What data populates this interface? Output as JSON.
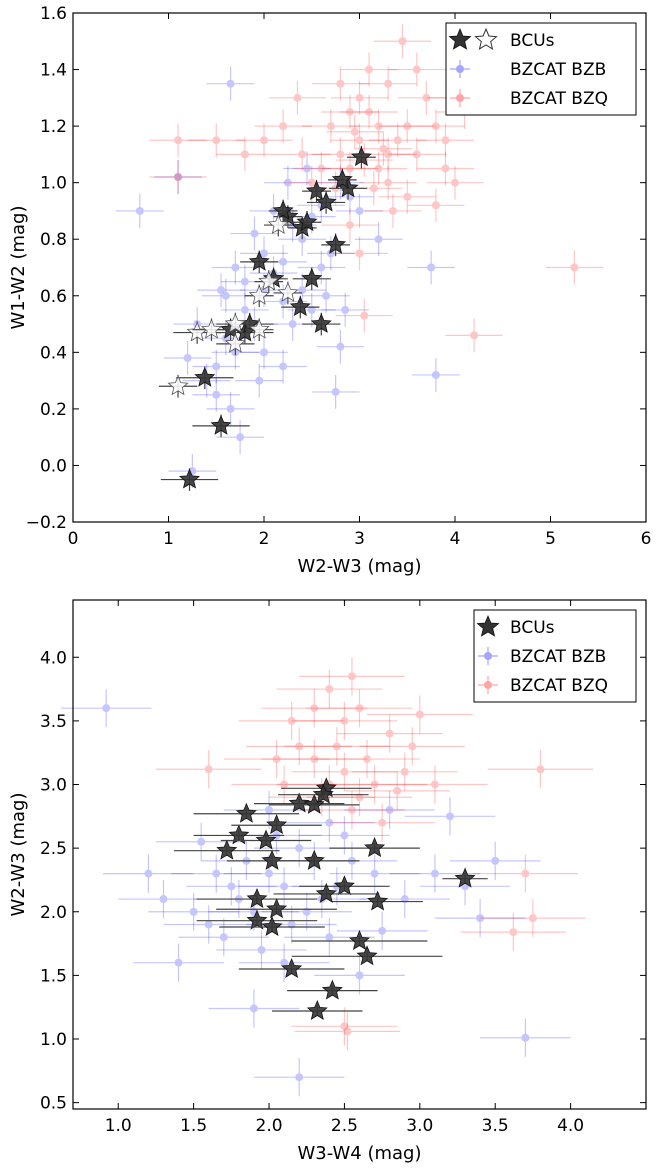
{
  "colors": {
    "bzb": "#0000ff",
    "bzq": "#ff0000",
    "bcu": "#333333",
    "bcu_open": "#ffffff"
  },
  "chart_data": [
    {
      "type": "scatter",
      "xlabel": "W2-W3 (mag)",
      "ylabel": "W1-W2 (mag)",
      "xlim": [
        0,
        6
      ],
      "ylim": [
        -0.2,
        1.6
      ],
      "xticks": [
        "0",
        "1",
        "2",
        "3",
        "4",
        "5",
        "6"
      ],
      "yticks": [
        "−0.2",
        "0.0",
        "0.2",
        "0.4",
        "0.6",
        "0.8",
        "1.0",
        "1.2",
        "1.4",
        "1.6"
      ],
      "grid": false,
      "legend_position": "top-right",
      "legend": [
        "BCUs",
        "BZCAT BZB",
        "BZCAT BZQ"
      ],
      "series": [
        {
          "name": "BZCAT BZB",
          "points": [
            [
              1.8,
              0.55
            ],
            [
              2.0,
              0.62
            ],
            [
              2.2,
              0.72
            ],
            [
              1.6,
              0.45
            ],
            [
              2.4,
              0.8
            ],
            [
              2.6,
              0.92
            ],
            [
              1.9,
              0.5
            ],
            [
              2.1,
              0.68
            ],
            [
              2.3,
              0.85
            ],
            [
              1.7,
              0.4
            ],
            [
              1.5,
              0.35
            ],
            [
              2.5,
              0.88
            ],
            [
              2.8,
              1.0
            ],
            [
              1.4,
              0.3
            ],
            [
              1.2,
              0.38
            ],
            [
              2.0,
              0.75
            ],
            [
              1.8,
              0.65
            ],
            [
              2.2,
              0.58
            ],
            [
              2.6,
              0.7
            ],
            [
              1.6,
              0.6
            ],
            [
              2.4,
              0.62
            ],
            [
              2.7,
              0.75
            ],
            [
              2.9,
              0.95
            ],
            [
              1.3,
              0.5
            ],
            [
              2.1,
              0.9
            ],
            [
              1.9,
              0.82
            ],
            [
              1.7,
              0.7
            ],
            [
              2.3,
              0.5
            ],
            [
              2.5,
              0.55
            ],
            [
              1.5,
              0.25
            ],
            [
              1.65,
              0.2
            ],
            [
              1.75,
              0.1
            ],
            [
              1.25,
              -0.02
            ],
            [
              2.0,
              0.4
            ],
            [
              2.2,
              0.35
            ],
            [
              0.7,
              0.9
            ],
            [
              1.1,
              1.02
            ],
            [
              1.65,
              1.35
            ],
            [
              3.8,
              0.32
            ],
            [
              3.75,
              0.7
            ],
            [
              2.8,
              0.42
            ],
            [
              2.85,
              0.55
            ],
            [
              2.75,
              0.26
            ],
            [
              1.95,
              0.3
            ],
            [
              2.25,
              1.0
            ],
            [
              2.45,
              1.05
            ],
            [
              3.0,
              0.9
            ],
            [
              3.2,
              0.8
            ],
            [
              2.65,
              0.6
            ],
            [
              1.55,
              0.62
            ]
          ],
          "xerr": 0.25,
          "yerr": 0.06
        },
        {
          "name": "BZCAT BZQ",
          "points": [
            [
              3.0,
              1.15
            ],
            [
              2.8,
              1.1
            ],
            [
              3.2,
              1.2
            ],
            [
              2.9,
              1.05
            ],
            [
              3.3,
              1.1
            ],
            [
              2.7,
              1.2
            ],
            [
              3.1,
              1.25
            ],
            [
              3.4,
              1.15
            ],
            [
              2.6,
              1.05
            ],
            [
              3.5,
              1.2
            ],
            [
              3.0,
              1.3
            ],
            [
              2.9,
              1.25
            ],
            [
              3.2,
              1.05
            ],
            [
              3.6,
              1.1
            ],
            [
              2.5,
              1.0
            ],
            [
              3.3,
              1.35
            ],
            [
              3.7,
              1.3
            ],
            [
              3.8,
              1.2
            ],
            [
              3.1,
              1.4
            ],
            [
              2.8,
              1.35
            ],
            [
              3.9,
              1.15
            ],
            [
              4.0,
              1.3
            ],
            [
              4.2,
              1.45
            ],
            [
              4.1,
              1.25
            ],
            [
              2.4,
              1.1
            ],
            [
              2.2,
              1.2
            ],
            [
              2.0,
              1.15
            ],
            [
              1.8,
              1.1
            ],
            [
              1.5,
              1.15
            ],
            [
              1.1,
              1.15
            ],
            [
              1.1,
              1.02
            ],
            [
              5.25,
              0.7
            ],
            [
              4.2,
              0.46
            ],
            [
              3.05,
              0.53
            ],
            [
              3.5,
              0.95
            ],
            [
              3.8,
              0.92
            ],
            [
              3.45,
              1.5
            ],
            [
              3.9,
              1.05
            ],
            [
              3.0,
              0.75
            ],
            [
              2.9,
              0.85
            ],
            [
              3.15,
              0.98
            ],
            [
              2.75,
              0.98
            ],
            [
              3.35,
              0.9
            ],
            [
              2.35,
              1.3
            ],
            [
              3.6,
              1.4
            ],
            [
              4.0,
              1.0
            ],
            [
              3.3,
              1.0
            ],
            [
              2.95,
              1.18
            ],
            [
              3.05,
              1.08
            ],
            [
              3.25,
              1.12
            ]
          ],
          "xerr": 0.3,
          "yerr": 0.06
        },
        {
          "name": "BCUs",
          "marker": "filled star",
          "points": [
            [
              1.22,
              -0.05
            ],
            [
              1.55,
              0.14
            ],
            [
              1.38,
              0.31
            ],
            [
              1.65,
              0.48
            ],
            [
              1.8,
              0.47
            ],
            [
              1.85,
              0.5
            ],
            [
              2.6,
              0.5
            ],
            [
              2.38,
              0.56
            ],
            [
              2.5,
              0.66
            ],
            [
              2.1,
              0.66
            ],
            [
              1.95,
              0.72
            ],
            [
              2.75,
              0.78
            ],
            [
              2.25,
              0.88
            ],
            [
              2.4,
              0.84
            ],
            [
              2.45,
              0.86
            ],
            [
              2.55,
              0.97
            ],
            [
              2.65,
              0.93
            ],
            [
              2.88,
              0.98
            ],
            [
              2.82,
              1.01
            ],
            [
              3.02,
              1.09
            ],
            [
              2.2,
              0.9
            ]
          ],
          "xerr": [
            0.3,
            0.3,
            0.3,
            0.2,
            0.3,
            0.25,
            0.2,
            0.2,
            0.2,
            0.15,
            0.2,
            0.15,
            0.15,
            0.15,
            0.15,
            0.15,
            0.2,
            0.2,
            0.15,
            0.15,
            0.15
          ]
        },
        {
          "name": "BCUs",
          "marker": "open star",
          "points": [
            [
              1.1,
              0.28
            ],
            [
              1.3,
              0.47
            ],
            [
              1.45,
              0.48
            ],
            [
              1.7,
              0.43
            ],
            [
              1.7,
              0.5
            ],
            [
              1.95,
              0.48
            ],
            [
              1.95,
              0.6
            ],
            [
              2.05,
              0.65
            ],
            [
              2.25,
              0.61
            ],
            [
              2.15,
              0.85
            ]
          ],
          "xerr": [
            0.2,
            0.25,
            0.2,
            0.2,
            0.2,
            0.15,
            0.15,
            0.15,
            0.15,
            0.15
          ]
        }
      ]
    },
    {
      "type": "scatter",
      "xlabel": "W3-W4 (mag)",
      "ylabel": "W2-W3 (mag)",
      "xlim": [
        0.7,
        4.5
      ],
      "ylim": [
        0.45,
        4.45
      ],
      "xticks": [
        "1.0",
        "1.5",
        "2.0",
        "2.5",
        "3.0",
        "3.5",
        "4.0"
      ],
      "yticks": [
        "0.5",
        "1.0",
        "1.5",
        "2.0",
        "2.5",
        "3.0",
        "3.5",
        "4.0"
      ],
      "grid": false,
      "legend_position": "top-right",
      "legend": [
        "BCUs",
        "BZCAT BZB",
        "BZCAT BZQ"
      ],
      "series": [
        {
          "name": "BZCAT BZB",
          "points": [
            [
              1.8,
              2.1
            ],
            [
              2.0,
              2.3
            ],
            [
              2.2,
              2.5
            ],
            [
              1.6,
              1.9
            ],
            [
              2.4,
              2.7
            ],
            [
              1.9,
              2.0
            ],
            [
              2.1,
              2.2
            ],
            [
              1.7,
              1.8
            ],
            [
              2.3,
              2.4
            ],
            [
              1.5,
              2.0
            ],
            [
              2.5,
              2.6
            ],
            [
              1.85,
              2.4
            ],
            [
              2.05,
              2.6
            ],
            [
              1.95,
              1.7
            ],
            [
              2.25,
              2.0
            ],
            [
              2.45,
              2.2
            ],
            [
              1.75,
              2.2
            ],
            [
              2.15,
              1.9
            ],
            [
              1.65,
              2.3
            ],
            [
              2.35,
              2.1
            ],
            [
              2.55,
              2.4
            ],
            [
              2.7,
              2.3
            ],
            [
              2.9,
              2.1
            ],
            [
              3.1,
              2.3
            ],
            [
              3.3,
              2.2
            ],
            [
              3.4,
              1.95
            ],
            [
              3.5,
              2.4
            ],
            [
              0.92,
              3.6
            ],
            [
              3.7,
              1.01
            ],
            [
              2.2,
              0.7
            ],
            [
              1.9,
              1.24
            ],
            [
              2.1,
              1.6
            ],
            [
              2.6,
              1.5
            ],
            [
              1.4,
              1.6
            ],
            [
              1.3,
              2.1
            ],
            [
              1.2,
              2.3
            ],
            [
              2.0,
              2.8
            ],
            [
              2.8,
              2.8
            ],
            [
              3.2,
              2.75
            ],
            [
              2.4,
              1.8
            ],
            [
              1.55,
              2.55
            ],
            [
              2.75,
              1.85
            ]
          ],
          "xerr": 0.3,
          "yerr": 0.15
        },
        {
          "name": "BZCAT BZQ",
          "points": [
            [
              2.4,
              3.0
            ],
            [
              2.5,
              3.1
            ],
            [
              2.6,
              2.9
            ],
            [
              2.3,
              3.2
            ],
            [
              2.7,
              3.0
            ],
            [
              2.45,
              3.3
            ],
            [
              2.55,
              2.8
            ],
            [
              2.35,
              2.9
            ],
            [
              2.65,
              3.2
            ],
            [
              2.5,
              3.5
            ],
            [
              2.2,
              3.3
            ],
            [
              2.8,
              3.4
            ],
            [
              2.9,
              3.1
            ],
            [
              2.1,
              3.0
            ],
            [
              2.3,
              3.6
            ],
            [
              2.6,
              3.6
            ],
            [
              2.75,
              2.7
            ],
            [
              2.15,
              3.5
            ],
            [
              2.95,
              3.3
            ],
            [
              3.1,
              3.0
            ],
            [
              2.4,
              3.75
            ],
            [
              2.55,
              3.85
            ],
            [
              1.6,
              3.12
            ],
            [
              3.8,
              3.12
            ],
            [
              3.7,
              2.3
            ],
            [
              3.62,
              1.84
            ],
            [
              3.75,
              1.95
            ],
            [
              2.5,
              1.1
            ],
            [
              2.52,
              1.06
            ],
            [
              2.85,
              2.95
            ],
            [
              3.0,
              3.55
            ],
            [
              2.05,
              3.2
            ]
          ],
          "xerr": 0.35,
          "yerr": 0.15
        },
        {
          "name": "BCUs",
          "marker": "filled star",
          "points": [
            [
              1.85,
              2.77
            ],
            [
              1.8,
              2.6
            ],
            [
              1.72,
              2.48
            ],
            [
              1.98,
              2.56
            ],
            [
              2.05,
              2.68
            ],
            [
              2.2,
              2.85
            ],
            [
              2.3,
              2.84
            ],
            [
              2.38,
              2.97
            ],
            [
              2.36,
              2.92
            ],
            [
              2.7,
              2.5
            ],
            [
              2.02,
              2.4
            ],
            [
              2.3,
              2.4
            ],
            [
              3.3,
              2.26
            ],
            [
              2.5,
              2.2
            ],
            [
              2.38,
              2.14
            ],
            [
              2.72,
              2.08
            ],
            [
              1.92,
              2.1
            ],
            [
              2.05,
              2.02
            ],
            [
              1.92,
              1.93
            ],
            [
              2.02,
              1.88
            ],
            [
              2.6,
              1.77
            ],
            [
              2.65,
              1.65
            ],
            [
              2.15,
              1.55
            ],
            [
              2.42,
              1.38
            ],
            [
              2.32,
              1.22
            ]
          ],
          "xerr": [
            0.35,
            0.3,
            0.35,
            0.3,
            0.3,
            0.3,
            0.3,
            0.3,
            0.3,
            0.3,
            0.3,
            0.3,
            0.15,
            0.3,
            0.35,
            0.3,
            0.4,
            0.4,
            0.4,
            0.35,
            0.45,
            0.5,
            0.35,
            0.3,
            0.3
          ]
        }
      ]
    }
  ]
}
